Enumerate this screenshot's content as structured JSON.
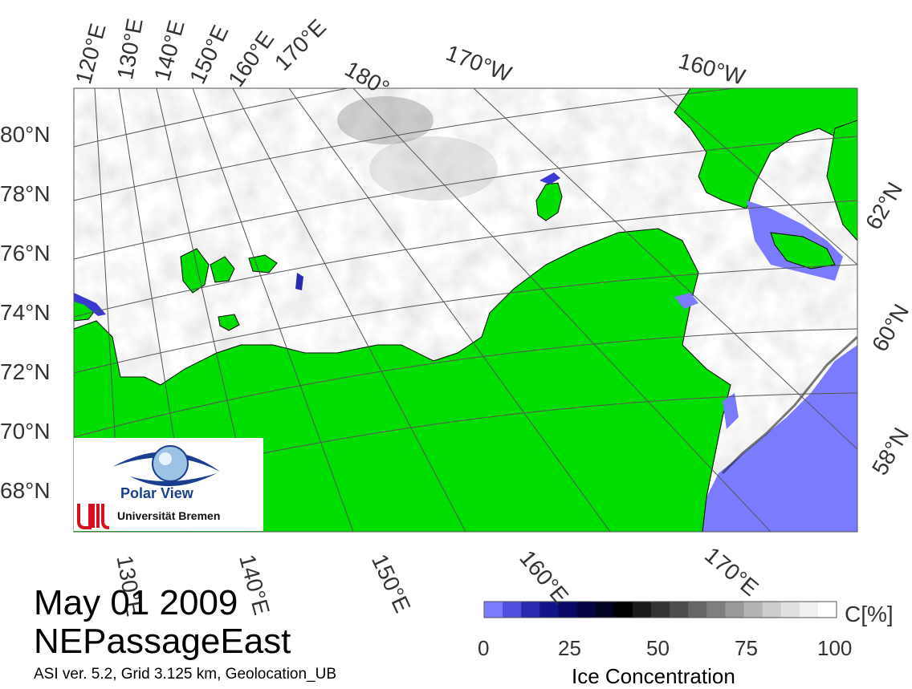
{
  "map": {
    "date": "May 01 2009",
    "region": "NEPassageEast",
    "product_info": "ASI ver. 5.2,  Grid 3.125 km, Geolocation_UB",
    "colors": {
      "land": "#00dd00",
      "open_water": "#7b7bff",
      "ice_full": "#ffffff",
      "coast": "#000000",
      "grid": "#555555"
    },
    "top_longitude_labels": [
      "120°E",
      "130°E",
      "140°E",
      "150°E",
      "160°E",
      "170°E",
      "180°",
      "170°W",
      "160°W"
    ],
    "bottom_longitude_labels": [
      "130°E",
      "140°E",
      "150°E",
      "160°E",
      "170°E"
    ],
    "left_latitude_labels": [
      "80°N",
      "78°N",
      "76°N",
      "74°N",
      "72°N",
      "70°N",
      "68°N"
    ],
    "right_latitude_labels": [
      "62°N",
      "60°N",
      "58°N"
    ]
  },
  "colorbar": {
    "title": "Ice Concentration",
    "unit": "C[%]",
    "ticks": [
      "0",
      "25",
      "50",
      "75",
      "100"
    ],
    "colors": [
      "#7b7bff",
      "#4f4fe0",
      "#2a2ab0",
      "#14148a",
      "#0a0a66",
      "#050544",
      "#020222",
      "#000000",
      "#1a1a1a",
      "#333333",
      "#4d4d4d",
      "#666666",
      "#7f7f7f",
      "#999999",
      "#b3b3b3",
      "#cccccc",
      "#e0e0e0",
      "#f0f0f0",
      "#ffffff"
    ]
  },
  "logo": {
    "title": "Polar View",
    "institution": "Universität Bremen",
    "icon": "eye-globe-icon"
  }
}
